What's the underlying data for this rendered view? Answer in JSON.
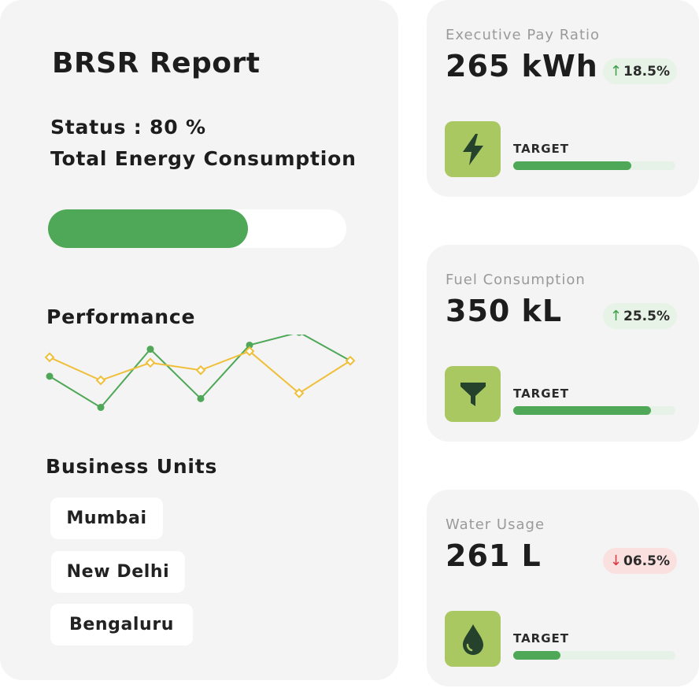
{
  "report": {
    "title": "BRSR Report",
    "status_text": "Status : 80 %",
    "energy_label": "Total Energy Consumption",
    "progress": 0.67,
    "performance_label": "Performance",
    "business_units_label": "Business Units",
    "business_units": [
      "Mumbai",
      "New Delhi",
      "Bengaluru"
    ]
  },
  "chart_data": {
    "type": "line",
    "title": "",
    "xlabel": "",
    "ylabel": "",
    "x": [
      1,
      2,
      3,
      4,
      5,
      6,
      7,
      8
    ],
    "ylim": [
      0,
      100
    ],
    "grid": false,
    "series": [
      {
        "color": "#4ea857",
        "marker": "circle",
        "values": [
          50,
          4,
          90,
          17,
          96,
          115,
          73,
          null
        ]
      },
      {
        "color": "#f0bf3a",
        "marker": "diamond",
        "values": [
          78,
          44,
          70,
          59,
          87,
          25,
          73,
          null
        ]
      }
    ]
  },
  "metrics": [
    {
      "name": "Executive Pay Ratio",
      "value": "265 kWh",
      "change": "18.5%",
      "direction": "up",
      "arrow": "↑",
      "target_label": "TARGET",
      "target_progress": 0.73,
      "icon": "lightning-icon"
    },
    {
      "name": "Fuel Consumption",
      "value": "350 kL",
      "change": "25.5%",
      "direction": "up",
      "arrow": "↑",
      "target_label": "TARGET",
      "target_progress": 0.85,
      "icon": "funnel-icon"
    },
    {
      "name": "Water Usage",
      "value": "261 L",
      "change": "06.5%",
      "direction": "down",
      "arrow": "↓",
      "target_label": "TARGET",
      "target_progress": 0.29,
      "icon": "water-drop-icon"
    }
  ],
  "colors": {
    "accent_green": "#4ea857",
    "icon_bg": "#a9c862",
    "icon_fg": "#24422c",
    "line_yellow": "#f0bf3a",
    "card_bg": "#f4f4f4"
  }
}
